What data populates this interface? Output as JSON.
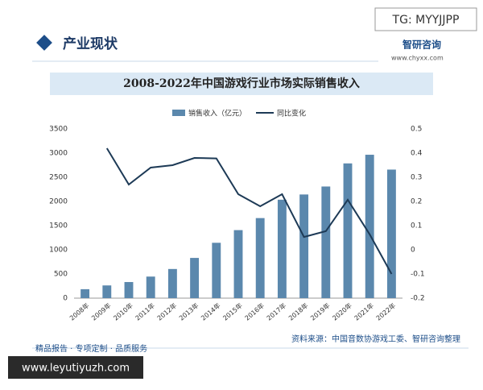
{
  "header": {
    "tag": "TG: MYYJJPP",
    "section": "产业现状",
    "logo": "智研咨询",
    "site": "www.chyxx.com"
  },
  "chart_data": {
    "type": "bar_line",
    "title": "2008-2022年中国游戏行业市场实际销售收入",
    "categories": [
      "2008年",
      "2009年",
      "2010年",
      "2011年",
      "2012年",
      "2013年",
      "2014年",
      "2015年",
      "2016年",
      "2017年",
      "2018年",
      "2019年",
      "2020年",
      "2021年",
      "2022年"
    ],
    "series": [
      {
        "name": "销售收入（亿元）",
        "type": "bar",
        "color": "#5b88ad",
        "values": [
          185,
          263,
          333,
          446,
          603,
          832,
          1145,
          1407,
          1656,
          2036,
          2144,
          2309,
          2787,
          2966,
          2659
        ]
      },
      {
        "name": "同比变化",
        "type": "line",
        "axis": "y2",
        "color": "#1d3a56",
        "values": [
          null,
          0.42,
          0.27,
          0.34,
          0.35,
          0.38,
          0.378,
          0.23,
          0.18,
          0.23,
          0.053,
          0.077,
          0.207,
          0.064,
          -0.1
        ]
      }
    ],
    "ylim": [
      0,
      3500
    ],
    "yticks": [
      0,
      500,
      1000,
      1500,
      2000,
      2500,
      3000,
      3500
    ],
    "y2lim": [
      -0.2,
      0.5
    ],
    "y2ticks": [
      -0.2,
      -0.1,
      0,
      0.1,
      0.2,
      0.3,
      0.4,
      0.5
    ],
    "source": "资料来源：中国音数协游戏工委、智研咨询整理"
  },
  "footer": {
    "slogan": "精品报告 · 专项定制 · 品质服务",
    "url": "www.leyutiyuzh.com"
  }
}
